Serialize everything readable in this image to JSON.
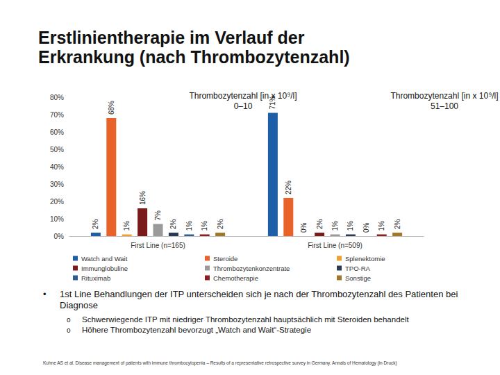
{
  "title": [
    "Erstlinientherapie im Verlauf der",
    "Erkrankung (nach Thrombozytenzahl)"
  ],
  "chart_data": {
    "type": "bar",
    "categories": [
      "First Line (n=165)",
      "First Line (n=509)"
    ],
    "series": [
      {
        "name": "Watch and Wait",
        "color": "#1f5fa8",
        "values": [
          2,
          71
        ],
        "value_labels": [
          "2%",
          "71%"
        ]
      },
      {
        "name": "Steroide",
        "color": "#e8622a",
        "values": [
          68,
          22
        ],
        "value_labels": [
          "68%",
          "22%"
        ]
      },
      {
        "name": "Splenektomie",
        "color": "#f0a030",
        "values": [
          1,
          0
        ],
        "value_labels": [
          "1%",
          "0%"
        ]
      },
      {
        "name": "Immunglobuline",
        "color": "#7b1a1a",
        "values": [
          16,
          2
        ],
        "value_labels": [
          "16%",
          "2%"
        ]
      },
      {
        "name": "Thrombozytenkonzentrate",
        "color": "#9a9a9a",
        "values": [
          7,
          1
        ],
        "value_labels": [
          "7%",
          "1%"
        ]
      },
      {
        "name": "TPO-RA",
        "color": "#2b3a55",
        "values": [
          2,
          1
        ],
        "value_labels": [
          "2%",
          "1%"
        ]
      },
      {
        "name": "Rituximab",
        "color": "#2e5e8e",
        "values": [
          1,
          0
        ],
        "value_labels": [
          "1%",
          "0%"
        ]
      },
      {
        "name": "Chemotherapie",
        "color": "#8b2020",
        "values": [
          1,
          1
        ],
        "value_labels": [
          "1%",
          "1%"
        ]
      },
      {
        "name": "Sonstige",
        "color": "#a0782a",
        "values": [
          2,
          2
        ],
        "value_labels": [
          "2%",
          "2%"
        ]
      }
    ],
    "ylim": [
      0,
      80
    ],
    "yticks": [
      {
        "value": 0,
        "label": "0%"
      },
      {
        "value": 10,
        "label": "10%"
      },
      {
        "value": 20,
        "label": "20%"
      },
      {
        "value": 30,
        "label": "30%"
      },
      {
        "value": 40,
        "label": "40%"
      },
      {
        "value": 50,
        "label": "50%"
      },
      {
        "value": 60,
        "label": "60%"
      },
      {
        "value": 70,
        "label": "70%"
      },
      {
        "value": 80,
        "label": "80%"
      }
    ],
    "grid": false,
    "legend": "bottom",
    "data_labels": true,
    "annotations": [
      {
        "lines": [
          "Thrombozytenzahl [in x 10⁹/l]",
          "0–10"
        ]
      },
      {
        "lines": [
          "Thrombozytenzahl [in x 10⁹/l]",
          "51–100"
        ]
      }
    ]
  },
  "bullets": [
    {
      "text": "1st Line Behandlungen der ITP unterscheiden sich je nach der Thrombozytenzahl des Patienten bei Diagnose",
      "sub": [
        "Schwerwiegende ITP mit niedriger Thrombozytenzahl hauptsächlich mit Steroiden behandelt",
        "Höhere Thrombozytenzahl bevorzugt „Watch and Wait“-Strategie"
      ]
    }
  ],
  "citation": "Kuhne AS et al. Disease management of patients with immune thrombocytopenia – Results of a representative retrospective survey in Germany. Annals of Hematology (in Druck)"
}
